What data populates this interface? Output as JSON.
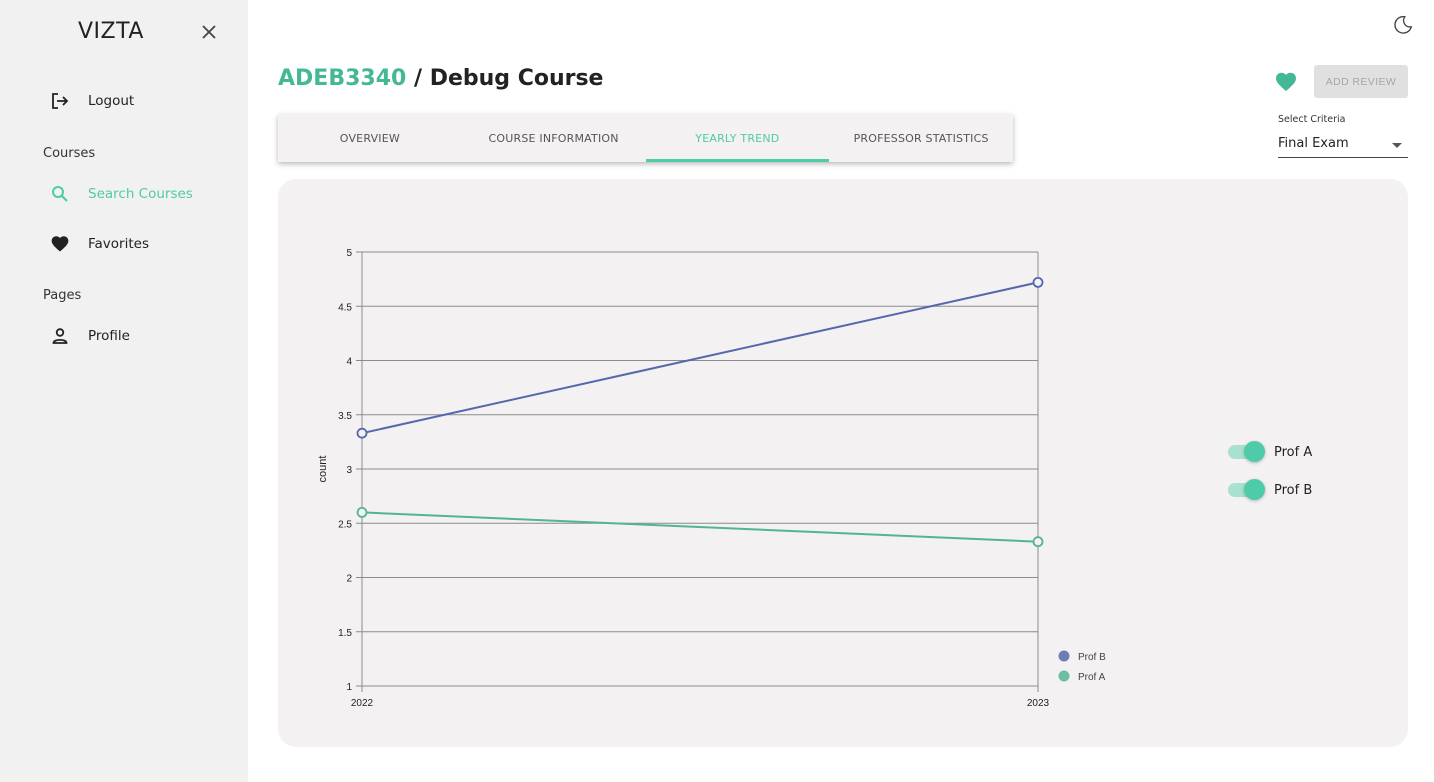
{
  "sidebar": {
    "brand": "VIZTA",
    "logout_label": "Logout",
    "courses_section": "Courses",
    "search_courses_label": "Search Courses",
    "favorites_label": "Favorites",
    "pages_section": "Pages",
    "profile_label": "Profile"
  },
  "header": {
    "course_code": "ADEB3340",
    "separator": " / ",
    "course_name": "Debug Course",
    "add_review_label": "ADD REVIEW"
  },
  "tabs": [
    {
      "label": "OVERVIEW",
      "active": false
    },
    {
      "label": "COURSE INFORMATION",
      "active": false
    },
    {
      "label": "YEARLY TREND",
      "active": true
    },
    {
      "label": "PROFESSOR STATISTICS",
      "active": false
    }
  ],
  "criteria": {
    "label": "Select Criteria",
    "selected": "Final Exam"
  },
  "toggles": [
    {
      "label": "Prof A",
      "on": true
    },
    {
      "label": "Prof B",
      "on": true
    }
  ],
  "colors": {
    "accent": "#4ecba8",
    "prof_a": "#52b497",
    "prof_b": "#5568ae"
  },
  "chart_data": {
    "type": "line",
    "x": [
      "2022",
      "2023"
    ],
    "ylabel": "count",
    "ylim": [
      1,
      5
    ],
    "yticks": [
      "1",
      "1.5",
      "2",
      "2.5",
      "3",
      "3.5",
      "4",
      "4.5",
      "5"
    ],
    "grid": true,
    "legend_position": "bottom-right",
    "series": [
      {
        "name": "Prof B",
        "values": [
          3.33,
          4.72
        ],
        "color": "#5568ae"
      },
      {
        "name": "Prof A",
        "values": [
          2.6,
          2.33
        ],
        "color": "#52b497"
      }
    ]
  }
}
